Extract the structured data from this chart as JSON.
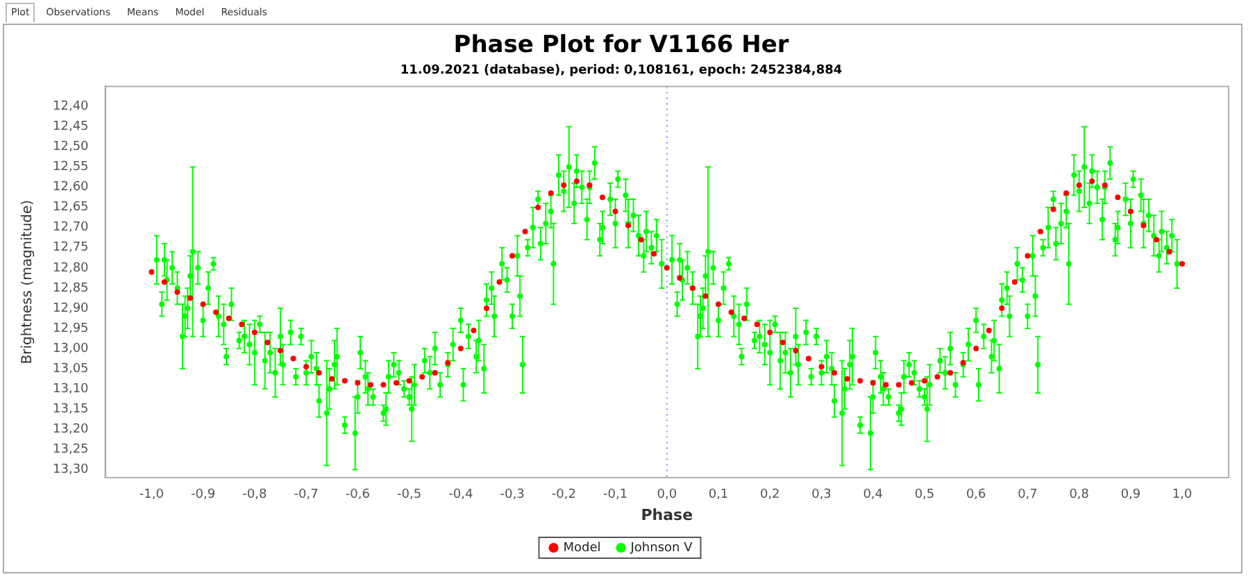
{
  "chart_data": {
    "type": "scatter",
    "title": "Phase Plot for V1166 Her",
    "subtitle": "11.09.2021 (database), period: 0,108161, epoch: 2452384,884",
    "xlabel": "Phase",
    "ylabel": "Brightness (magnitude)",
    "annotations": [
      "Plot",
      "Observations",
      "Means",
      "Model",
      "Residuals"
    ],
    "xlim": [
      -1.09,
      1.09
    ],
    "ylim": [
      13.32,
      12.35
    ],
    "xticks": [
      {
        "value": -1,
        "label": "-1,0"
      },
      {
        "value": -0.9,
        "label": "-0,9"
      },
      {
        "value": -0.8,
        "label": "-0,8"
      },
      {
        "value": -0.7,
        "label": "-0,7"
      },
      {
        "value": -0.6,
        "label": "-0,6"
      },
      {
        "value": -0.5,
        "label": "-0,5"
      },
      {
        "value": -0.4,
        "label": "-0,4"
      },
      {
        "value": -0.3,
        "label": "-0,3"
      },
      {
        "value": -0.2,
        "label": "-0,2"
      },
      {
        "value": -0.1,
        "label": "-0,1"
      },
      {
        "value": 0,
        "label": "0,0"
      },
      {
        "value": 0.1,
        "label": "0,1"
      },
      {
        "value": 0.2,
        "label": "0,2"
      },
      {
        "value": 0.3,
        "label": "0,3"
      },
      {
        "value": 0.4,
        "label": "0,4"
      },
      {
        "value": 0.5,
        "label": "0,5"
      },
      {
        "value": 0.6,
        "label": "0,6"
      },
      {
        "value": 0.7,
        "label": "0,7"
      },
      {
        "value": 0.8,
        "label": "0,8"
      },
      {
        "value": 0.9,
        "label": "0,9"
      },
      {
        "value": 1,
        "label": "1,0"
      }
    ],
    "yticks": [
      {
        "value": 12.4,
        "label": "12,40"
      },
      {
        "value": 12.45,
        "label": "12,45"
      },
      {
        "value": 12.5,
        "label": "12,50"
      },
      {
        "value": 12.55,
        "label": "12,55"
      },
      {
        "value": 12.6,
        "label": "12,60"
      },
      {
        "value": 12.65,
        "label": "12,65"
      },
      {
        "value": 12.7,
        "label": "12,70"
      },
      {
        "value": 12.75,
        "label": "12,75"
      },
      {
        "value": 12.8,
        "label": "12,80"
      },
      {
        "value": 12.85,
        "label": "12,85"
      },
      {
        "value": 12.9,
        "label": "12,90"
      },
      {
        "value": 12.95,
        "label": "12,95"
      },
      {
        "value": 13,
        "label": "13,00"
      },
      {
        "value": 13.05,
        "label": "13,05"
      },
      {
        "value": 13.1,
        "label": "13,10"
      },
      {
        "value": 13.15,
        "label": "13,15"
      },
      {
        "value": 13.2,
        "label": "13,20"
      },
      {
        "value": 13.25,
        "label": "13,25"
      },
      {
        "value": 13.3,
        "label": "13,30"
      }
    ],
    "ref_lines": [
      {
        "axis": "x",
        "value": 0,
        "color": "#8080ff",
        "line_style": "dotted"
      }
    ],
    "legend": "bottom",
    "marker": "circle",
    "series": [
      {
        "name": "Johnson V",
        "color": "#00ff00",
        "x": [
          -0.99,
          -0.98,
          -0.975,
          -0.97,
          -0.96,
          -0.95,
          -0.94,
          -0.935,
          -0.93,
          -0.925,
          -0.92,
          -0.91,
          -0.9,
          -0.89,
          -0.88,
          -0.87,
          -0.86,
          -0.855,
          -0.845,
          -0.83,
          -0.82,
          -0.81,
          -0.8,
          -0.79,
          -0.78,
          -0.77,
          -0.76,
          -0.75,
          -0.745,
          -0.73,
          -0.72,
          -0.71,
          -0.7,
          -0.69,
          -0.68,
          -0.675,
          -0.66,
          -0.655,
          -0.645,
          -0.64,
          -0.625,
          -0.605,
          -0.6,
          -0.595,
          -0.585,
          -0.58,
          -0.57,
          -0.55,
          -0.545,
          -0.54,
          -0.53,
          -0.52,
          -0.51,
          -0.5,
          -0.495,
          -0.49,
          -0.47,
          -0.46,
          -0.45,
          -0.44,
          -0.425,
          -0.415,
          -0.4,
          -0.395,
          -0.385,
          -0.37,
          -0.365,
          -0.355,
          -0.35,
          -0.34,
          -0.335,
          -0.32,
          -0.31,
          -0.3,
          -0.29,
          -0.285,
          -0.28,
          -0.27,
          -0.26,
          -0.25,
          -0.245,
          -0.235,
          -0.225,
          -0.22,
          -0.21,
          -0.2,
          -0.19,
          -0.18,
          -0.175,
          -0.165,
          -0.155,
          -0.15,
          -0.14,
          -0.13,
          -0.125,
          -0.11,
          -0.1,
          -0.095,
          -0.08,
          -0.075,
          -0.065,
          -0.055,
          -0.045,
          -0.04,
          -0.03,
          -0.02,
          -0.01,
          0.01,
          0.02,
          0.025,
          0.03,
          0.04,
          0.05,
          0.06,
          0.065,
          0.07,
          0.075,
          0.08,
          0.09,
          0.1,
          0.11,
          0.12,
          0.13,
          0.14,
          0.145,
          0.155,
          0.17,
          0.18,
          0.19,
          0.2,
          0.21,
          0.22,
          0.23,
          0.24,
          0.25,
          0.255,
          0.27,
          0.28,
          0.29,
          0.3,
          0.31,
          0.32,
          0.325,
          0.34,
          0.345,
          0.355,
          0.36,
          0.375,
          0.395,
          0.4,
          0.405,
          0.415,
          0.42,
          0.43,
          0.45,
          0.455,
          0.46,
          0.47,
          0.48,
          0.49,
          0.5,
          0.505,
          0.51,
          0.53,
          0.54,
          0.55,
          0.56,
          0.575,
          0.585,
          0.6,
          0.605,
          0.615,
          0.63,
          0.635,
          0.645,
          0.65,
          0.66,
          0.665,
          0.68,
          0.69,
          0.7,
          0.71,
          0.715,
          0.72,
          0.73,
          0.74,
          0.75,
          0.755,
          0.765,
          0.775,
          0.78,
          0.79,
          0.8,
          0.81,
          0.82,
          0.825,
          0.835,
          0.845,
          0.85,
          0.86,
          0.87,
          0.875,
          0.89,
          0.9,
          0.905,
          0.92,
          0.925,
          0.935,
          0.945,
          0.955,
          0.96,
          0.97,
          0.98,
          0.99
        ],
        "values": [
          12.78,
          12.89,
          12.78,
          12.83,
          12.8,
          12.85,
          12.97,
          12.92,
          12.9,
          12.82,
          12.76,
          12.8,
          12.93,
          12.85,
          12.79,
          12.92,
          12.94,
          13.02,
          12.89,
          12.98,
          12.97,
          12.99,
          13.01,
          12.94,
          13.03,
          13.01,
          13.06,
          12.97,
          13.04,
          12.96,
          13.07,
          12.97,
          13.06,
          13.02,
          13.05,
          13.13,
          13.16,
          13.1,
          13.04,
          13.02,
          13.19,
          13.21,
          13.12,
          13.01,
          13.07,
          13.1,
          13.12,
          13.16,
          13.15,
          13.07,
          13.04,
          13.06,
          13.1,
          13.12,
          13.15,
          13.09,
          13.03,
          13.06,
          13.0,
          13.09,
          13.04,
          12.99,
          12.93,
          13.09,
          12.97,
          13.02,
          12.98,
          13.05,
          12.88,
          12.85,
          12.92,
          12.79,
          12.83,
          12.92,
          12.77,
          12.87,
          13.04,
          12.75,
          12.7,
          12.63,
          12.74,
          12.69,
          12.66,
          12.79,
          12.57,
          12.61,
          12.55,
          12.64,
          12.56,
          12.6,
          12.68,
          12.6,
          12.54,
          12.73,
          12.7,
          12.63,
          12.69,
          12.58,
          12.62,
          12.69,
          12.67,
          12.72,
          12.77,
          12.71,
          12.75,
          12.72,
          12.79,
          12.78,
          12.89,
          12.78,
          12.83,
          12.8,
          12.85,
          12.97,
          12.92,
          12.9,
          12.82,
          12.76,
          12.8,
          12.93,
          12.85,
          12.79,
          12.92,
          12.94,
          13.02,
          12.89,
          12.98,
          12.97,
          12.99,
          13.01,
          12.94,
          13.03,
          13.01,
          13.06,
          12.97,
          13.04,
          12.96,
          13.07,
          12.97,
          13.06,
          13.02,
          13.05,
          13.13,
          13.16,
          13.1,
          13.04,
          13.02,
          13.19,
          13.21,
          13.12,
          13.01,
          13.07,
          13.1,
          13.12,
          13.16,
          13.15,
          13.07,
          13.04,
          13.06,
          13.1,
          13.12,
          13.15,
          13.09,
          13.03,
          13.06,
          13.0,
          13.09,
          13.04,
          12.99,
          12.93,
          13.09,
          12.97,
          13.02,
          12.98,
          13.05,
          12.88,
          12.85,
          12.92,
          12.79,
          12.83,
          12.92,
          12.77,
          12.87,
          13.04,
          12.75,
          12.7,
          12.63,
          12.74,
          12.69,
          12.66,
          12.79,
          12.57,
          12.61,
          12.55,
          12.64,
          12.56,
          12.6,
          12.68,
          12.6,
          12.54,
          12.73,
          12.7,
          12.63,
          12.69,
          12.58,
          12.62,
          12.69,
          12.67,
          12.72,
          12.77,
          12.71,
          12.75,
          12.72,
          12.79
        ],
        "errors": [
          0.06,
          0.03,
          0.04,
          0.05,
          0.04,
          0.04,
          0.08,
          0.05,
          0.05,
          0.05,
          0.21,
          0.04,
          0.04,
          0.04,
          0.015,
          0.05,
          0.05,
          0.02,
          0.04,
          0.02,
          0.04,
          0.05,
          0.08,
          0.02,
          0.07,
          0.05,
          0.06,
          0.07,
          0.05,
          0.03,
          0.02,
          0.02,
          0.03,
          0.04,
          0.04,
          0.04,
          0.13,
          0.05,
          0.06,
          0.07,
          0.02,
          0.09,
          0.04,
          0.04,
          0.04,
          0.04,
          0.02,
          0.02,
          0.04,
          0.04,
          0.03,
          0.03,
          0.02,
          0.02,
          0.08,
          0.05,
          0.03,
          0.04,
          0.04,
          0.03,
          0.03,
          0.04,
          0.03,
          0.04,
          0.03,
          0.04,
          0.05,
          0.06,
          0.04,
          0.04,
          0.05,
          0.04,
          0.03,
          0.03,
          0.05,
          0.05,
          0.07,
          0.02,
          0.05,
          0.02,
          0.04,
          0.05,
          0.04,
          0.1,
          0.05,
          0.05,
          0.1,
          0.05,
          0.04,
          0.04,
          0.05,
          0.04,
          0.04,
          0.04,
          0.04,
          0.04,
          0.06,
          0.02,
          0.04,
          0.06,
          0.04,
          0.05,
          0.04,
          0.05,
          0.04,
          0.04,
          0.06,
          0.06,
          0.03,
          0.04,
          0.05,
          0.04,
          0.04,
          0.08,
          0.05,
          0.05,
          0.05,
          0.21,
          0.04,
          0.04,
          0.04,
          0.015,
          0.05,
          0.05,
          0.02,
          0.04,
          0.02,
          0.04,
          0.05,
          0.08,
          0.02,
          0.07,
          0.05,
          0.06,
          0.07,
          0.05,
          0.03,
          0.02,
          0.02,
          0.03,
          0.04,
          0.04,
          0.04,
          0.13,
          0.05,
          0.06,
          0.07,
          0.02,
          0.09,
          0.04,
          0.04,
          0.04,
          0.04,
          0.02,
          0.02,
          0.04,
          0.04,
          0.03,
          0.03,
          0.02,
          0.02,
          0.08,
          0.05,
          0.03,
          0.04,
          0.04,
          0.03,
          0.03,
          0.04,
          0.03,
          0.04,
          0.03,
          0.04,
          0.05,
          0.06,
          0.04,
          0.04,
          0.05,
          0.04,
          0.03,
          0.03,
          0.05,
          0.05,
          0.07,
          0.02,
          0.05,
          0.02,
          0.04,
          0.05,
          0.04,
          0.1,
          0.05,
          0.05,
          0.1,
          0.05,
          0.04,
          0.04,
          0.05,
          0.04,
          0.04,
          0.04,
          0.04,
          0.04,
          0.06,
          0.02,
          0.04,
          0.06,
          0.04,
          0.05,
          0.04,
          0.05,
          0.04,
          0.04,
          0.06
        ]
      },
      {
        "name": "Model",
        "color": "#ff0000",
        "x": [
          -1,
          -0.975,
          -0.95,
          -0.925,
          -0.9,
          -0.875,
          -0.85,
          -0.825,
          -0.8,
          -0.775,
          -0.75,
          -0.725,
          -0.7,
          -0.675,
          -0.65,
          -0.625,
          -0.6,
          -0.575,
          -0.55,
          -0.525,
          -0.5,
          -0.475,
          -0.45,
          -0.425,
          -0.4,
          -0.375,
          -0.35,
          -0.325,
          -0.3,
          -0.275,
          -0.25,
          -0.225,
          -0.2,
          -0.175,
          -0.15,
          -0.125,
          -0.1,
          -0.075,
          -0.05,
          -0.025,
          0,
          0.025,
          0.05,
          0.075,
          0.1,
          0.125,
          0.15,
          0.175,
          0.2,
          0.225,
          0.25,
          0.275,
          0.3,
          0.325,
          0.35,
          0.375,
          0.4,
          0.425,
          0.45,
          0.475,
          0.5,
          0.525,
          0.55,
          0.575,
          0.6,
          0.625,
          0.65,
          0.675,
          0.7,
          0.725,
          0.75,
          0.775,
          0.8,
          0.825,
          0.85,
          0.875,
          0.9,
          0.925,
          0.95,
          0.975,
          1
        ],
        "values": [
          12.81,
          12.835,
          12.86,
          12.875,
          12.89,
          12.91,
          12.925,
          12.94,
          12.96,
          12.985,
          13.005,
          13.025,
          13.045,
          13.06,
          13.075,
          13.08,
          13.085,
          13.09,
          13.09,
          13.085,
          13.08,
          13.07,
          13.06,
          13.035,
          13.0,
          12.955,
          12.9,
          12.835,
          12.77,
          12.71,
          12.65,
          12.615,
          12.595,
          12.585,
          12.595,
          12.625,
          12.66,
          12.695,
          12.73,
          12.765,
          12.8,
          12.825,
          12.85,
          12.87,
          12.89,
          12.91,
          12.925,
          12.94,
          12.96,
          12.985,
          13.005,
          13.025,
          13.045,
          13.06,
          13.075,
          13.08,
          13.085,
          13.09,
          13.09,
          13.085,
          13.08,
          13.07,
          13.06,
          13.035,
          13.0,
          12.955,
          12.9,
          12.835,
          12.77,
          12.71,
          12.655,
          12.615,
          12.595,
          12.585,
          12.595,
          12.625,
          12.66,
          12.695,
          12.73,
          12.76,
          12.79
        ]
      }
    ]
  }
}
